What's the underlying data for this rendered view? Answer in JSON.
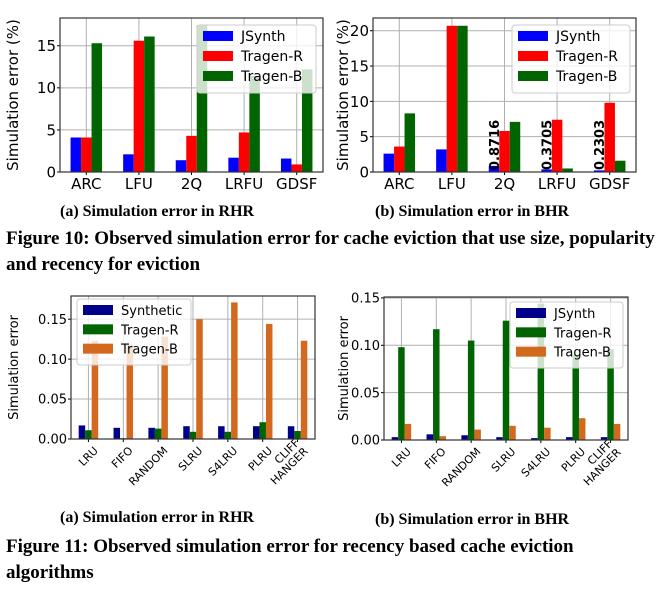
{
  "figure10": {
    "caption": "Figure 10: Observed simulation error for cache eviction that use size, popularity and recency for eviction",
    "subcaption_a": "(a) Simulation error in RHR",
    "subcaption_b": "(b) Simulation error in BHR"
  },
  "figure11": {
    "caption": "Figure 11: Observed simulation error for recency based cache eviction algorithms",
    "subcaption_a": "(a) Simulation error in RHR",
    "subcaption_b": "(b) Simulation error in BHR"
  },
  "chart_data": [
    {
      "id": "fig10a",
      "type": "bar",
      "title": "",
      "xlabel": "",
      "ylabel": "Simulation error (%)",
      "ylim": [
        0,
        18.3
      ],
      "yticks": [
        0,
        5,
        10,
        15
      ],
      "ytick_labels": [
        "0",
        "5",
        "10",
        "15"
      ],
      "grid": true,
      "legend": "top-right",
      "categories": [
        "ARC",
        "LFU",
        "2Q",
        "LRFU",
        "GDSF"
      ],
      "series": [
        {
          "name": "JSynth",
          "color": "#0000ff",
          "values": [
            4.1,
            2.1,
            1.4,
            1.7,
            1.6
          ]
        },
        {
          "name": "Tragen-R",
          "color": "#ff0000",
          "values": [
            4.1,
            15.6,
            4.3,
            4.7,
            0.9
          ]
        },
        {
          "name": "Tragen-B",
          "color": "#006400",
          "values": [
            15.3,
            16.1,
            17.4,
            11.4,
            12.2
          ]
        }
      ],
      "annotations": []
    },
    {
      "id": "fig10b",
      "type": "bar",
      "title": "",
      "xlabel": "",
      "ylabel": "Simulation error (%)",
      "ylim": [
        0,
        21.8
      ],
      "yticks": [
        0,
        5,
        10,
        15,
        20
      ],
      "ytick_labels": [
        "0",
        "5",
        "10",
        "15",
        "20"
      ],
      "grid": true,
      "legend": "top-right",
      "categories": [
        "ARC",
        "LFU",
        "2Q",
        "LRFU",
        "GDSF"
      ],
      "series": [
        {
          "name": "JSynth",
          "color": "#0000ff",
          "values": [
            2.6,
            3.2,
            0.8716,
            0.3705,
            0.2303
          ]
        },
        {
          "name": "Tragen-R",
          "color": "#ff0000",
          "values": [
            3.6,
            20.7,
            5.8,
            7.4,
            9.8
          ]
        },
        {
          "name": "Tragen-B",
          "color": "#006400",
          "values": [
            8.3,
            20.7,
            7.1,
            0.5,
            1.6
          ]
        }
      ],
      "annotations": [
        {
          "category": "2Q",
          "series": "JSynth",
          "text": "0.8716"
        },
        {
          "category": "LRFU",
          "series": "JSynth",
          "text": "0.3705"
        },
        {
          "category": "GDSF",
          "series": "JSynth",
          "text": "0.2303"
        }
      ]
    },
    {
      "id": "fig11a",
      "type": "bar",
      "title": "",
      "xlabel": "",
      "ylabel": "Simulation error",
      "ylim": [
        0,
        0.179
      ],
      "yticks": [
        0,
        0.05,
        0.1,
        0.15
      ],
      "ytick_labels": [
        "0.00",
        "0.05",
        "0.10",
        "0.15"
      ],
      "grid": true,
      "legend": "top-left",
      "categories": [
        "LRU",
        "FIFO",
        "RANDOM",
        "SLRU",
        "S4LRU",
        "PLRU",
        "CLIFF\nHANGER"
      ],
      "series": [
        {
          "name": "Synthetic",
          "color": "#00008b",
          "values": [
            0.017,
            0.014,
            0.014,
            0.016,
            0.016,
            0.016,
            0.016
          ]
        },
        {
          "name": "Tragen-R",
          "color": "#006400",
          "values": [
            0.011,
            0.001,
            0.013,
            0.009,
            0.009,
            0.021,
            0.01
          ]
        },
        {
          "name": "Tragen-B",
          "color": "#d2691e",
          "values": [
            0.123,
            0.118,
            0.128,
            0.15,
            0.171,
            0.144,
            0.123
          ]
        }
      ],
      "annotations": []
    },
    {
      "id": "fig11b",
      "type": "bar",
      "title": "",
      "xlabel": "",
      "ylabel": "Simulation error",
      "ylim": [
        0,
        0.151
      ],
      "yticks": [
        0,
        0.05,
        0.1,
        0.15
      ],
      "ytick_labels": [
        "0.00",
        "0.05",
        "0.10",
        "0.15"
      ],
      "grid": true,
      "legend": "top-right",
      "categories": [
        "LRU",
        "FIFO",
        "RANDOM",
        "SLRU",
        "S4LRU",
        "PLRU",
        "CLIFF\nHANGER"
      ],
      "series": [
        {
          "name": "JSynth",
          "color": "#00008b",
          "values": [
            0.003,
            0.006,
            0.005,
            0.003,
            0.002,
            0.003,
            0.003
          ]
        },
        {
          "name": "Tragen-R",
          "color": "#006400",
          "values": [
            0.098,
            0.117,
            0.105,
            0.126,
            0.144,
            0.09,
            0.096
          ]
        },
        {
          "name": "Tragen-B",
          "color": "#d2691e",
          "values": [
            0.017,
            0.004,
            0.011,
            0.015,
            0.013,
            0.023,
            0.017
          ]
        }
      ],
      "annotations": []
    }
  ]
}
